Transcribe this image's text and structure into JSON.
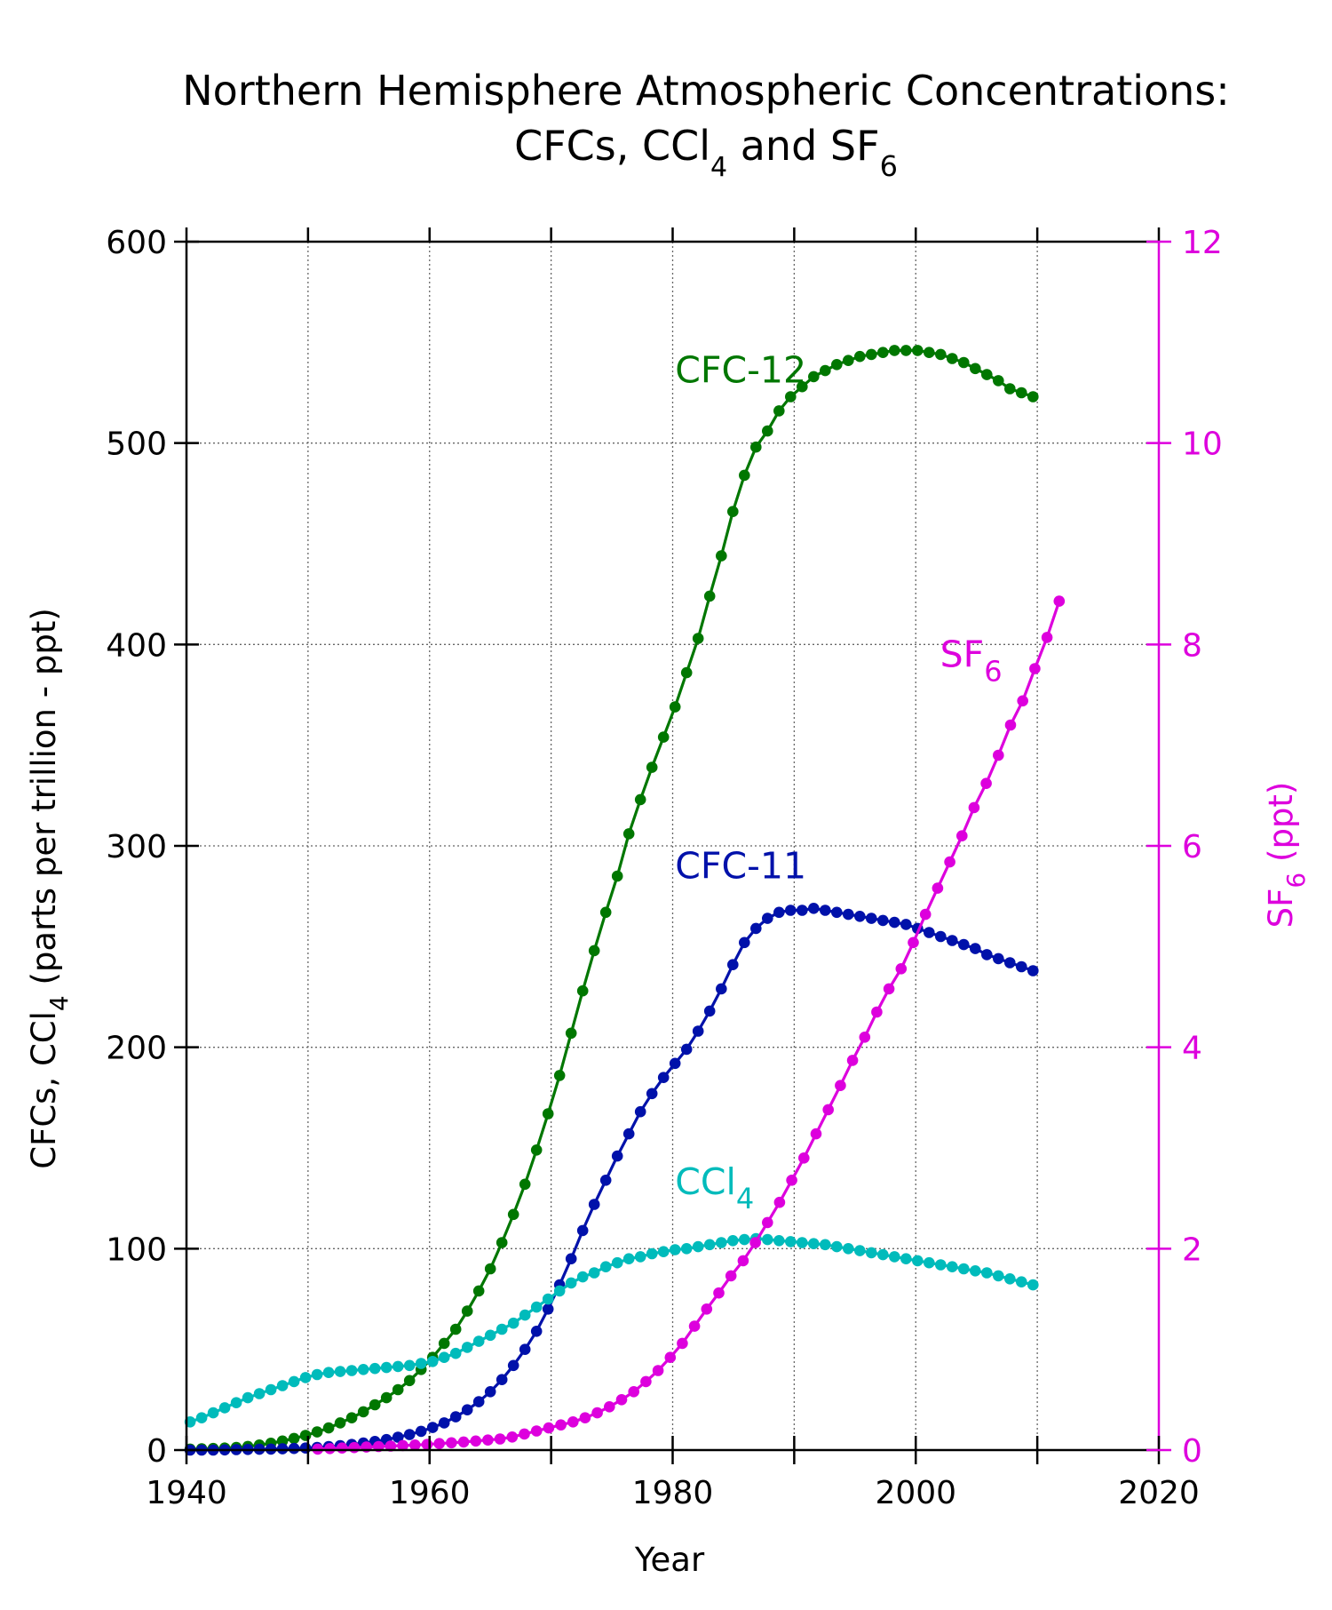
{
  "chart_data": {
    "type": "line",
    "title": {
      "line1": "Northern Hemisphere Atmospheric Concentrations:",
      "line2_prefix": "CFCs, CCl",
      "line2_sub1": "4",
      "line2_mid": " and SF",
      "line2_sub2": "6"
    },
    "xlabel": "Year",
    "ylabel": {
      "prefix": "CFCs, CCl",
      "sub": "4",
      "suffix": " (parts per trillion - ppt)"
    },
    "y2label": {
      "prefix": "SF",
      "sub": "6",
      "suffix": " (ppt)"
    },
    "xlim": [
      1940,
      2020
    ],
    "ylim": [
      0,
      600
    ],
    "y2lim": [
      0,
      12
    ],
    "xticks": [
      1940,
      1960,
      1980,
      2000,
      2020
    ],
    "xticks_minor": [
      1950,
      1970,
      1990,
      2010
    ],
    "yticks": [
      0,
      100,
      200,
      300,
      400,
      500,
      600
    ],
    "y2ticks": [
      0,
      2,
      4,
      6,
      8,
      10,
      12
    ],
    "grid": true,
    "axis2_color": "#dd00dd",
    "series": [
      {
        "name": "CFC-12",
        "label": {
          "text": "CFC-12",
          "sub": "",
          "x": 1980.2,
          "y": 530
        },
        "color": "#007700",
        "axis": "left",
        "x_start": 1940.3,
        "x_step": 0.95,
        "values": [
          0.5,
          0.6,
          0.8,
          1,
          1.3,
          1.8,
          2.5,
          3.4,
          4.5,
          5.8,
          7.3,
          9,
          11,
          13.5,
          16,
          19,
          22.5,
          26,
          30,
          34.5,
          40,
          46,
          53,
          60,
          69,
          79,
          90,
          103,
          117,
          132,
          149,
          167,
          186,
          207,
          228,
          248,
          267,
          285,
          306,
          323,
          339,
          354,
          369,
          386,
          403,
          424,
          444,
          466,
          484,
          498,
          506,
          516,
          523,
          528,
          533,
          536,
          539,
          541,
          543,
          544,
          545,
          546,
          546,
          546,
          545,
          544,
          542,
          540,
          537,
          534,
          531,
          527,
          525,
          523
        ]
      },
      {
        "name": "CFC-11",
        "label": {
          "text": "CFC-11",
          "sub": "",
          "x": 1980.2,
          "y": 284
        },
        "color": "#0011aa",
        "axis": "left",
        "x_start": 1940.3,
        "x_step": 0.95,
        "values": [
          0,
          0,
          0,
          0.1,
          0.2,
          0.3,
          0.4,
          0.5,
          0.6,
          0.8,
          1,
          1.3,
          1.7,
          2.2,
          2.8,
          3.5,
          4.3,
          5.2,
          6.4,
          7.7,
          9.3,
          11.2,
          13.5,
          16.5,
          20,
          24,
          29,
          35,
          42,
          50,
          59,
          70,
          82,
          95,
          109,
          122,
          134,
          146,
          157,
          168,
          177,
          185,
          192,
          199,
          208,
          218,
          229,
          241,
          252,
          259,
          264,
          267,
          268,
          268,
          269,
          268,
          267,
          266,
          265,
          264,
          263,
          262,
          261,
          259,
          257,
          255,
          253,
          251,
          249,
          246,
          244,
          242,
          240,
          238
        ]
      },
      {
        "name": "CCl4",
        "label": {
          "text": "CCl",
          "sub": "4",
          "x": 1980.2,
          "y": 127
        },
        "color": "#00bbbb",
        "axis": "left",
        "x_start": 1940.3,
        "x_step": 0.95,
        "values": [
          14,
          16,
          18.5,
          21,
          23.5,
          26,
          28,
          30,
          32,
          34,
          36,
          37.5,
          38.5,
          39,
          39.5,
          40,
          40.5,
          41,
          41.5,
          42,
          43,
          44,
          46,
          48,
          51,
          54,
          57,
          60,
          63,
          67,
          71,
          75,
          79,
          83,
          86,
          88,
          91,
          93,
          95,
          96,
          97.5,
          98.5,
          99.5,
          100,
          101,
          102,
          103,
          104,
          104.5,
          105,
          104.5,
          104,
          103.5,
          103,
          102.5,
          102,
          101,
          100,
          99,
          98,
          97,
          96,
          95,
          94,
          93,
          92,
          91,
          90,
          89,
          88,
          86.5,
          85,
          83.5,
          82
        ]
      },
      {
        "name": "SF6",
        "label": {
          "text": "SF",
          "sub": "6",
          "x": 2002,
          "y": 7.78
        },
        "color": "#dd00dd",
        "axis": "right",
        "x_start": 1950.8,
        "x_step": 1.0,
        "values": [
          0.01,
          0.015,
          0.02,
          0.025,
          0.03,
          0.035,
          0.04,
          0.045,
          0.05,
          0.056,
          0.064,
          0.072,
          0.08,
          0.09,
          0.1,
          0.11,
          0.13,
          0.16,
          0.19,
          0.22,
          0.25,
          0.28,
          0.32,
          0.37,
          0.43,
          0.5,
          0.58,
          0.68,
          0.79,
          0.92,
          1.06,
          1.23,
          1.4,
          1.56,
          1.73,
          1.88,
          2.06,
          2.26,
          2.46,
          2.68,
          2.9,
          3.14,
          3.38,
          3.62,
          3.87,
          4.1,
          4.35,
          4.58,
          4.78,
          5.04,
          5.32,
          5.58,
          5.84,
          6.1,
          6.38,
          6.62,
          6.9,
          7.2,
          7.44,
          7.76,
          8.07,
          8.43
        ]
      }
    ]
  }
}
